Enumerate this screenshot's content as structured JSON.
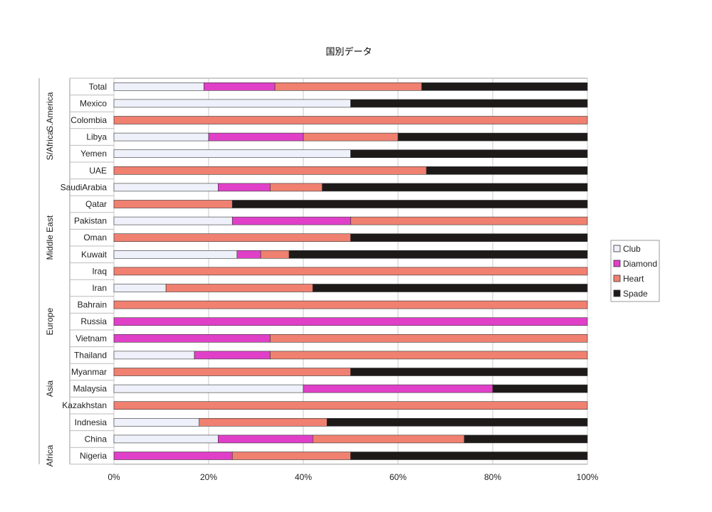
{
  "chart_data": {
    "type": "bar",
    "orientation": "horizontal",
    "stacked": "percent",
    "title": "国別データ",
    "xlim": [
      0,
      100
    ],
    "x_ticks": [
      "0%",
      "20%",
      "40%",
      "60%",
      "80%",
      "100%"
    ],
    "legend_position": "right",
    "grid": true,
    "categories": [
      "Total",
      "Mexico",
      "Colombia",
      "Libya",
      "Yemen",
      "UAE",
      "SaudiArabia",
      "Qatar",
      "Pakistan",
      "Oman",
      "Kuwait",
      "Iraq",
      "Iran",
      "Bahrain",
      "Russia",
      "Vietnam",
      "Thailand",
      "Myanmar",
      "Malaysia",
      "Kazakhstan",
      "Indnesia",
      "China",
      "Nigeria"
    ],
    "groups": [
      {
        "label": "S.America",
        "first": 1,
        "last": 2
      },
      {
        "label": "S/Africa",
        "first": 3,
        "last": 4
      },
      {
        "label": "Middle East",
        "first": 5,
        "last": 13
      },
      {
        "label": "Europe",
        "first": 14,
        "last": 14
      },
      {
        "label": "Asia",
        "first": 15,
        "last": 21
      },
      {
        "label": "Africa",
        "first": 22,
        "last": 22
      }
    ],
    "series": [
      {
        "name": "Club",
        "color": "#eef0fa",
        "values": [
          19,
          50,
          0,
          20,
          50,
          0,
          22,
          0,
          25,
          0,
          26,
          0,
          11,
          0,
          0,
          0,
          17,
          0,
          40,
          0,
          18,
          22,
          0
        ]
      },
      {
        "name": "Diamond",
        "color": "#e040c8",
        "values": [
          15,
          0,
          0,
          20,
          0,
          0,
          11,
          0,
          25,
          0,
          5,
          0,
          0,
          0,
          100,
          33,
          16,
          0,
          40,
          0,
          0,
          20,
          25
        ]
      },
      {
        "name": "Heart",
        "color": "#f08070",
        "values": [
          31,
          0,
          100,
          20,
          0,
          66,
          11,
          25,
          50,
          50,
          6,
          100,
          31,
          100,
          0,
          67,
          67,
          50,
          0,
          100,
          27,
          32,
          25
        ]
      },
      {
        "name": "Spade",
        "color": "#1e1a1a",
        "values": [
          35,
          50,
          0,
          40,
          50,
          34,
          56,
          75,
          0,
          50,
          63,
          0,
          58,
          0,
          0,
          0,
          0,
          50,
          20,
          0,
          55,
          26,
          50
        ]
      }
    ]
  }
}
